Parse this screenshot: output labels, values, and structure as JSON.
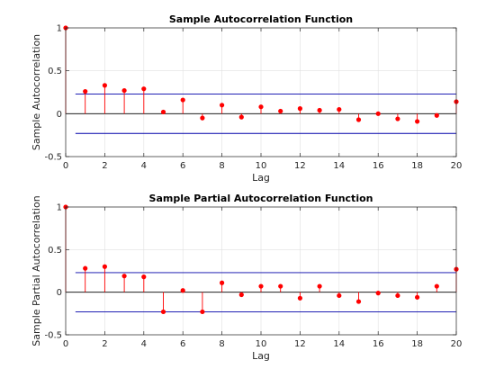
{
  "chart_data": [
    {
      "type": "stem",
      "title": "Sample Autocorrelation Function",
      "xlabel": "Lag",
      "ylabel": "Sample Autocorrelation",
      "xlim": [
        0,
        20
      ],
      "ylim": [
        -0.5,
        1
      ],
      "xticks": [
        "0",
        "2",
        "4",
        "6",
        "8",
        "10",
        "12",
        "14",
        "16",
        "18",
        "20"
      ],
      "yticks": [
        "-0.5",
        "0",
        "0.5",
        "1"
      ],
      "grid": true,
      "confidence_bounds": [
        0.23,
        -0.23
      ],
      "x": [
        0,
        1,
        2,
        3,
        4,
        5,
        6,
        7,
        8,
        9,
        10,
        11,
        12,
        13,
        14,
        15,
        16,
        17,
        18,
        19,
        20
      ],
      "values": [
        1,
        0.26,
        0.33,
        0.27,
        0.29,
        0.02,
        0.16,
        -0.05,
        0.1,
        -0.04,
        0.08,
        0.03,
        0.06,
        0.04,
        0.05,
        -0.07,
        0.0,
        -0.06,
        -0.09,
        -0.02,
        0.14
      ]
    },
    {
      "type": "stem",
      "title": "Sample Partial Autocorrelation Function",
      "xlabel": "Lag",
      "ylabel": "Sample Partial Autocorrelation",
      "xlim": [
        0,
        20
      ],
      "ylim": [
        -0.5,
        1
      ],
      "xticks": [
        "0",
        "2",
        "4",
        "6",
        "8",
        "10",
        "12",
        "14",
        "16",
        "18",
        "20"
      ],
      "yticks": [
        "-0.5",
        "0",
        "0.5",
        "1"
      ],
      "grid": true,
      "confidence_bounds": [
        0.23,
        -0.23
      ],
      "x": [
        0,
        1,
        2,
        3,
        4,
        5,
        6,
        7,
        8,
        9,
        10,
        11,
        12,
        13,
        14,
        15,
        16,
        17,
        18,
        19,
        20
      ],
      "values": [
        1,
        0.28,
        0.3,
        0.19,
        0.18,
        -0.23,
        0.02,
        -0.23,
        0.11,
        -0.03,
        0.07,
        0.07,
        -0.07,
        0.07,
        -0.04,
        -0.11,
        -0.01,
        -0.04,
        -0.06,
        0.07,
        0.27
      ]
    }
  ],
  "colors": {
    "stem": "#ff0000",
    "bounds": "#0000aa",
    "zero": "#000000",
    "grid": "#e0e0e0",
    "axis": "#262626"
  }
}
